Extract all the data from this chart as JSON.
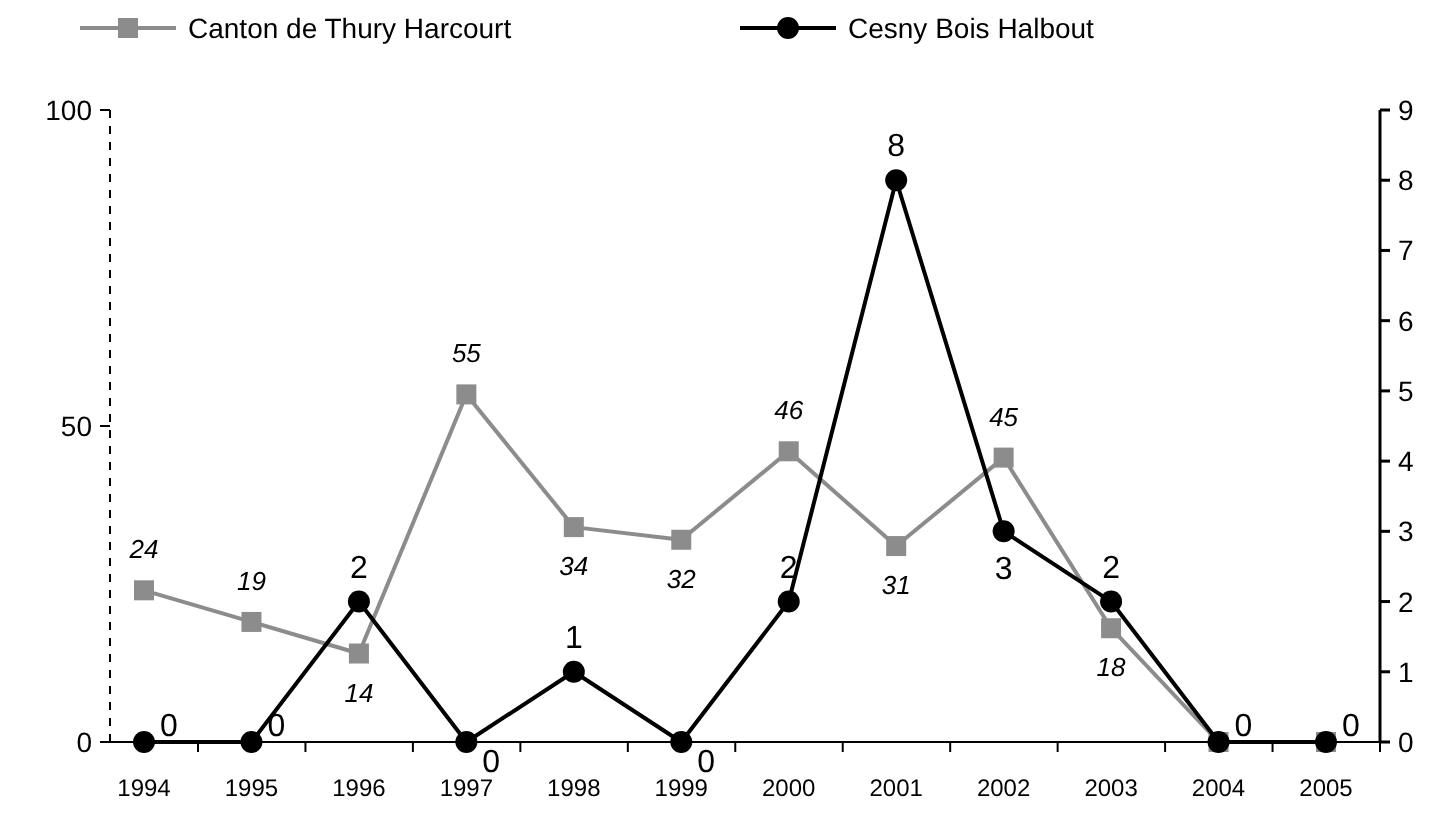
{
  "chart_data": {
    "type": "line",
    "categories": [
      "1994",
      "1995",
      "1996",
      "1997",
      "1998",
      "1999",
      "2000",
      "2001",
      "2002",
      "2003",
      "2004",
      "2005"
    ],
    "series": [
      {
        "name": "Canton de Thury Harcourt",
        "color": "#8c8c8c",
        "marker": "square",
        "values": [
          24,
          19,
          14,
          55,
          34,
          32,
          46,
          31,
          45,
          18,
          0,
          0
        ],
        "value_labels": [
          "24",
          "19",
          "14",
          "55",
          "34",
          "32",
          "46",
          "31",
          "45",
          "18",
          null,
          null
        ]
      },
      {
        "name": "Cesny Bois Halbout",
        "color": "#000000",
        "marker": "circle",
        "axis": "y2",
        "values": [
          0,
          0,
          2,
          0,
          1,
          0,
          2,
          8,
          3,
          2,
          0,
          0
        ],
        "value_labels": [
          "0",
          "0",
          "2",
          "0",
          "1",
          "0",
          "2",
          "8",
          "3",
          "2",
          "0",
          "0"
        ]
      }
    ],
    "ylim": [
      0,
      100
    ],
    "yticks": [
      0,
      50,
      100
    ],
    "y2lim": [
      0,
      9
    ],
    "y2ticks": [
      0,
      1,
      2,
      3,
      4,
      5,
      6,
      7,
      8,
      9
    ],
    "grid": false,
    "legend": "top"
  }
}
